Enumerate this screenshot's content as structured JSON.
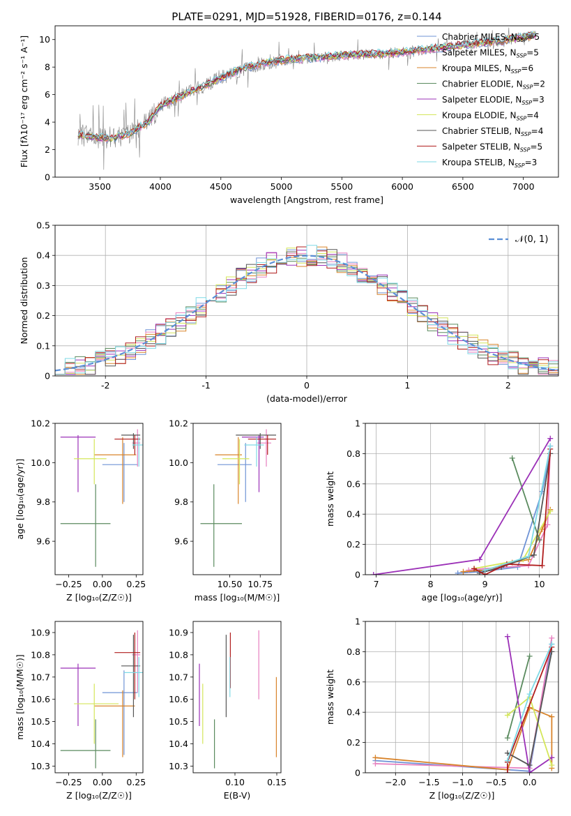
{
  "figure_title": "PLATE=0291, MJD=51928, FIBERID=0176, z=0.144",
  "models": [
    {
      "name": "Chabrier MILES",
      "nssp": "5",
      "color": "#6f93d6"
    },
    {
      "name": "Salpeter MILES",
      "nssp": "5",
      "color": "#e77fbf"
    },
    {
      "name": "Kroupa MILES",
      "nssp": "6",
      "color": "#d8832a"
    },
    {
      "name": "Chabrier ELODIE",
      "nssp": "2",
      "color": "#5a8a5e"
    },
    {
      "name": "Salpeter ELODIE",
      "nssp": "3",
      "color": "#9b30b7"
    },
    {
      "name": "Kroupa ELODIE",
      "nssp": "4",
      "color": "#d4e65a"
    },
    {
      "name": "Chabrier STELIB",
      "nssp": "4",
      "color": "#555555"
    },
    {
      "name": "Salpeter STELIB",
      "nssp": "5",
      "color": "#b01c1c"
    },
    {
      "name": "Kroupa STELIB",
      "nssp": "3",
      "color": "#7ed9e6"
    }
  ],
  "chart_data": [
    {
      "id": "spectrum",
      "type": "line",
      "xlabel": "wavelength [Angstrom, rest frame]",
      "ylabel": "Flux [fλ10⁻¹⁷ erg cm⁻² s⁻¹ A⁻¹]",
      "xlim": [
        3130,
        7290
      ],
      "ylim": [
        0,
        11
      ],
      "xticks": [
        3500,
        4000,
        4500,
        5000,
        5500,
        6000,
        6500,
        7000
      ],
      "yticks": [
        0,
        2,
        4,
        6,
        8,
        10
      ],
      "data_color": "#808080",
      "continuum": [
        [
          3320,
          3.1
        ],
        [
          3450,
          2.9
        ],
        [
          3600,
          2.8
        ],
        [
          3750,
          3.2
        ],
        [
          3900,
          4.0
        ],
        [
          4000,
          5.2
        ],
        [
          4200,
          6.0
        ],
        [
          4400,
          6.8
        ],
        [
          4600,
          7.6
        ],
        [
          4800,
          8.2
        ],
        [
          5000,
          8.5
        ],
        [
          5300,
          8.7
        ],
        [
          5600,
          8.9
        ],
        [
          5900,
          9.0
        ],
        [
          6200,
          9.3
        ],
        [
          6500,
          9.6
        ],
        [
          6800,
          9.9
        ],
        [
          7100,
          10.3
        ]
      ],
      "grid": false
    },
    {
      "id": "residuals",
      "type": "step",
      "xlabel": "(data-model)/error",
      "ylabel": "Normed distribution",
      "xlim": [
        -2.5,
        2.5
      ],
      "ylim": [
        0,
        0.5
      ],
      "xticks": [
        -2,
        -1,
        0,
        1,
        2
      ],
      "yticks": [
        0,
        0.1,
        0.2,
        0.3,
        0.4,
        0.5
      ],
      "bin_width": 0.1,
      "gaussian_label": "𝒩(0, 1)",
      "gaussian_color": "#5b8fd6",
      "grid": true
    },
    {
      "id": "age_vs_Z",
      "type": "errorbar",
      "xlabel": "Z [log₁₀(Z/Z☉)]",
      "ylabel": "age  [log₁₀(age/yr)]",
      "xlim": [
        -0.35,
        0.3
      ],
      "ylim": [
        9.43,
        10.2
      ],
      "xticks": [
        -0.25,
        0,
        0.25
      ],
      "xticklabels": [
        "−0.25",
        "0.00",
        "0.25"
      ],
      "yticks": [
        9.6,
        9.8,
        10.0,
        10.2
      ],
      "yticklabels": [
        "9.6",
        "9.8",
        "10.0",
        "10.2"
      ],
      "points": [
        {
          "m": 0,
          "x": 0.16,
          "y": 9.99,
          "x0": 0.0,
          "x1": 0.26,
          "y0": 9.8,
          "y1": 10.1
        },
        {
          "m": 1,
          "x": 0.26,
          "y": 10.1,
          "x0": 0.22,
          "x1": 0.28,
          "y0": 9.98,
          "y1": 10.17
        },
        {
          "m": 2,
          "x": 0.15,
          "y": 10.04,
          "x0": -0.06,
          "x1": 0.25,
          "y0": 9.79,
          "y1": 10.13
        },
        {
          "m": 3,
          "x": -0.05,
          "y": 9.69,
          "x0": -0.31,
          "x1": 0.06,
          "y0": 9.47,
          "y1": 9.89
        },
        {
          "m": 4,
          "x": -0.18,
          "y": 10.13,
          "x0": -0.31,
          "x1": -0.05,
          "y0": 9.85,
          "y1": 10.14
        },
        {
          "m": 5,
          "x": -0.06,
          "y": 10.02,
          "x0": -0.21,
          "x1": 0.03,
          "y0": 9.89,
          "y1": 10.12
        },
        {
          "m": 6,
          "x": 0.23,
          "y": 10.14,
          "x0": 0.14,
          "x1": 0.28,
          "y0": 10.07,
          "y1": 10.15
        },
        {
          "m": 7,
          "x": 0.24,
          "y": 10.12,
          "x0": 0.09,
          "x1": 0.28,
          "y0": 10.04,
          "y1": 10.14
        },
        {
          "m": 8,
          "x": 0.27,
          "y": 10.09,
          "x0": 0.22,
          "x1": 0.3,
          "y0": 9.98,
          "y1": 10.13
        }
      ]
    },
    {
      "id": "age_vs_mass",
      "type": "errorbar",
      "xlabel": "mass [log₁₀(M/M☉)]",
      "ylabel": "",
      "xlim": [
        10.2,
        10.92
      ],
      "ylim": [
        9.43,
        10.2
      ],
      "xticks": [
        10.5,
        10.75
      ],
      "xticklabels": [
        "10.50",
        "10.75"
      ],
      "yticks": [
        9.6,
        9.8,
        10.0,
        10.2
      ],
      "yticklabels": [
        "9.6",
        "9.8",
        "10.0",
        "10.2"
      ],
      "points": [
        {
          "m": 0,
          "x": 10.63,
          "y": 9.99,
          "x0": 10.4,
          "x1": 10.68,
          "y0": 9.8,
          "y1": 10.1
        },
        {
          "m": 1,
          "x": 10.8,
          "y": 10.1,
          "x0": 10.72,
          "x1": 10.84,
          "y0": 9.98,
          "y1": 10.17
        },
        {
          "m": 2,
          "x": 10.57,
          "y": 10.04,
          "x0": 10.38,
          "x1": 10.6,
          "y0": 9.79,
          "y1": 10.13
        },
        {
          "m": 3,
          "x": 10.37,
          "y": 9.69,
          "x0": 10.26,
          "x1": 10.6,
          "y0": 9.47,
          "y1": 9.89
        },
        {
          "m": 4,
          "x": 10.74,
          "y": 10.13,
          "x0": 10.6,
          "x1": 10.78,
          "y0": 9.85,
          "y1": 10.14
        },
        {
          "m": 5,
          "x": 10.58,
          "y": 10.02,
          "x0": 10.44,
          "x1": 10.66,
          "y0": 9.89,
          "y1": 10.12
        },
        {
          "m": 6,
          "x": 10.75,
          "y": 10.14,
          "x0": 10.55,
          "x1": 10.88,
          "y0": 10.07,
          "y1": 10.15
        },
        {
          "m": 7,
          "x": 10.81,
          "y": 10.12,
          "x0": 10.65,
          "x1": 10.88,
          "y0": 10.04,
          "y1": 10.14
        },
        {
          "m": 8,
          "x": 10.72,
          "y": 10.09,
          "x0": 10.62,
          "x1": 10.78,
          "y0": 9.98,
          "y1": 10.13
        }
      ]
    },
    {
      "id": "weight_vs_age",
      "type": "line",
      "xlabel": "age  [log₁₀(age/yr)]",
      "ylabel": "mass weight",
      "xlim": [
        6.8,
        10.35
      ],
      "ylim": [
        0,
        1
      ],
      "xticks": [
        7,
        8,
        9,
        10
      ],
      "yticks": [
        0,
        0.2,
        0.4,
        0.6,
        0.8,
        1.0
      ],
      "series": [
        {
          "m": 0,
          "x": [
            8.5,
            8.9,
            9.6,
            10.05,
            10.2
          ],
          "y": [
            0.01,
            0.02,
            0.05,
            0.55,
            0.8
          ]
        },
        {
          "m": 1,
          "x": [
            8.7,
            9.0,
            9.8,
            10.15,
            10.2
          ],
          "y": [
            0.03,
            0.04,
            0.06,
            0.33,
            0.85
          ]
        },
        {
          "m": 2,
          "x": [
            8.6,
            9.0,
            9.5,
            9.8,
            10.05,
            10.2
          ],
          "y": [
            0.02,
            0.03,
            0.08,
            0.1,
            0.3,
            0.43
          ]
        },
        {
          "m": 3,
          "x": [
            9.5,
            10.0
          ],
          "y": [
            0.77,
            0.23
          ]
        },
        {
          "m": 4,
          "x": [
            6.95,
            8.9,
            10.2
          ],
          "y": [
            0.0,
            0.1,
            0.9
          ]
        },
        {
          "m": 5,
          "x": [
            8.8,
            9.7,
            10.2
          ],
          "y": [
            0.04,
            0.1,
            0.42
          ]
        },
        {
          "m": 6,
          "x": [
            8.9,
            9.3,
            9.9,
            10.2
          ],
          "y": [
            0.01,
            0.05,
            0.13,
            0.8
          ]
        },
        {
          "m": 7,
          "x": [
            8.8,
            9.0,
            9.4,
            10.05,
            10.2
          ],
          "y": [
            0.04,
            0.0,
            0.07,
            0.06,
            0.83
          ]
        },
        {
          "m": 8,
          "x": [
            9.0,
            9.8,
            10.2
          ],
          "y": [
            0.03,
            0.12,
            0.85
          ]
        }
      ],
      "grid": true
    },
    {
      "id": "mass_vs_Z",
      "type": "errorbar",
      "xlabel": "Z [log₁₀(Z/Z☉)]",
      "ylabel": "mass [log₁₀(M/M☉)]",
      "xlim": [
        -0.35,
        0.3
      ],
      "ylim": [
        10.27,
        10.95
      ],
      "xticks": [
        -0.25,
        0,
        0.25
      ],
      "xticklabels": [
        "−0.25",
        "0.00",
        "0.25"
      ],
      "yticks": [
        10.3,
        10.4,
        10.5,
        10.6,
        10.7,
        10.8,
        10.9
      ],
      "yticklabels": [
        "10.3",
        "10.4",
        "10.5",
        "10.6",
        "10.7",
        "10.8",
        "10.9"
      ],
      "points": [
        {
          "m": 0,
          "x": 0.16,
          "y": 10.63,
          "x0": 0.0,
          "x1": 0.26,
          "y0": 10.35,
          "y1": 10.73
        },
        {
          "m": 1,
          "x": 0.26,
          "y": 10.8,
          "x0": 0.22,
          "x1": 0.28,
          "y0": 10.63,
          "y1": 10.91
        },
        {
          "m": 2,
          "x": 0.15,
          "y": 10.57,
          "x0": -0.06,
          "x1": 0.24,
          "y0": 10.34,
          "y1": 10.64
        },
        {
          "m": 3,
          "x": -0.05,
          "y": 10.37,
          "x0": -0.31,
          "x1": 0.06,
          "y0": 10.29,
          "y1": 10.51
        },
        {
          "m": 4,
          "x": -0.18,
          "y": 10.74,
          "x0": -0.31,
          "x1": -0.05,
          "y0": 10.48,
          "y1": 10.76
        },
        {
          "m": 5,
          "x": -0.06,
          "y": 10.58,
          "x0": -0.21,
          "x1": 0.12,
          "y0": 10.4,
          "y1": 10.67
        },
        {
          "m": 6,
          "x": 0.23,
          "y": 10.75,
          "x0": 0.14,
          "x1": 0.28,
          "y0": 10.52,
          "y1": 10.89
        },
        {
          "m": 7,
          "x": 0.24,
          "y": 10.81,
          "x0": 0.09,
          "x1": 0.28,
          "y0": 10.6,
          "y1": 10.9
        },
        {
          "m": 8,
          "x": 0.27,
          "y": 10.72,
          "x0": 0.16,
          "x1": 0.3,
          "y0": 10.61,
          "y1": 10.79
        }
      ]
    },
    {
      "id": "mass_vs_ebv",
      "type": "errorbar",
      "xlabel": "E(B-V)",
      "ylabel": "",
      "xlim": [
        0.05,
        0.155
      ],
      "ylim": [
        10.27,
        10.95
      ],
      "xticks": [
        0.1,
        0.15
      ],
      "xticklabels": [
        "0.10",
        "0.15"
      ],
      "yticks": [
        10.3,
        10.4,
        10.5,
        10.6,
        10.7,
        10.8,
        10.9
      ],
      "yticklabels": [
        "10.3",
        "10.4",
        "10.5",
        "10.6",
        "10.7",
        "10.8",
        "10.9"
      ],
      "points": [
        {
          "m": 4,
          "x": 0.0575,
          "y": 10.6,
          "y0": 10.48,
          "y1": 10.76
        },
        {
          "m": 5,
          "x": 0.0615,
          "y": 10.54,
          "y0": 10.4,
          "y1": 10.67
        },
        {
          "m": 3,
          "x": 0.0755,
          "y": 10.4,
          "y0": 10.29,
          "y1": 10.51
        },
        {
          "m": 6,
          "x": 0.0895,
          "y": 10.7,
          "y0": 10.52,
          "y1": 10.89
        },
        {
          "m": 7,
          "x": 0.0945,
          "y": 10.8,
          "y0": 10.65,
          "y1": 10.9
        },
        {
          "m": 8,
          "x": 0.094,
          "y": 10.7,
          "y0": 10.61,
          "y1": 10.79
        },
        {
          "m": 1,
          "x": 0.1285,
          "y": 10.75,
          "y0": 10.6,
          "y1": 10.91
        },
        {
          "m": 2,
          "x": 0.1495,
          "y": 10.5,
          "y0": 10.34,
          "y1": 10.7
        }
      ]
    },
    {
      "id": "weight_vs_Z",
      "type": "line",
      "xlabel": "Z [log₁₀(Z/Z☉)]",
      "ylabel": "mass weight",
      "xlim": [
        -2.45,
        0.43
      ],
      "ylim": [
        0,
        1
      ],
      "xticks": [
        -2.0,
        -1.5,
        -1.0,
        -0.5,
        0.0
      ],
      "xticklabels": [
        "−2.0",
        "−1.5",
        "−1.0",
        "−0.5",
        "0.0"
      ],
      "yticks": [
        0,
        0.2,
        0.4,
        0.6,
        0.8,
        1.0
      ],
      "series": [
        {
          "m": 0,
          "x": [
            -2.3,
            0.0,
            0.33
          ],
          "y": [
            0.08,
            0.01,
            0.85
          ]
        },
        {
          "m": 1,
          "x": [
            -2.3,
            0.0,
            0.33
          ],
          "y": [
            0.06,
            0.03,
            0.89
          ]
        },
        {
          "m": 2,
          "x": [
            -2.3,
            -0.33,
            0.0,
            0.33,
            0.33
          ],
          "y": [
            0.1,
            0.02,
            0.43,
            0.37,
            0.03
          ]
        },
        {
          "m": 3,
          "x": [
            -0.33,
            0.0
          ],
          "y": [
            0.23,
            0.77
          ]
        },
        {
          "m": 4,
          "x": [
            -0.33,
            0.0,
            0.33
          ],
          "y": [
            0.9,
            0.0,
            0.1
          ]
        },
        {
          "m": 5,
          "x": [
            -0.33,
            0.0,
            0.33
          ],
          "y": [
            0.38,
            0.5,
            0.05
          ]
        },
        {
          "m": 6,
          "x": [
            -0.33,
            0.0,
            0.33
          ],
          "y": [
            0.13,
            0.05,
            0.8
          ]
        },
        {
          "m": 7,
          "x": [
            -0.33,
            -0.33,
            0.33
          ],
          "y": [
            0.0,
            0.07,
            0.83
          ]
        },
        {
          "m": 8,
          "x": [
            -0.33,
            0.0,
            0.33
          ],
          "y": [
            0.08,
            0.52,
            0.85
          ]
        }
      ],
      "grid": true
    }
  ]
}
